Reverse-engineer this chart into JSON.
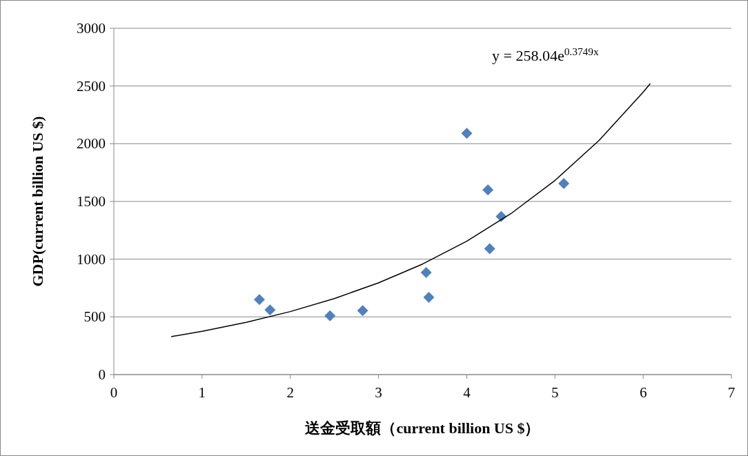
{
  "chart_data": {
    "type": "scatter",
    "xlabel": "送金受取額（current billion US $）",
    "ylabel": "GDP(current billion US $)",
    "annotations": [
      "y = 258.04e$^{0.3749x}$"
    ],
    "xlim": [
      0,
      7
    ],
    "xticks": [
      0,
      1,
      2,
      3,
      4,
      5,
      6,
      7
    ],
    "ylim": [
      0,
      3000
    ],
    "yticks": [
      0,
      500,
      1000,
      1500,
      2000,
      2500,
      3000
    ],
    "grid": "y",
    "marker": "diamond",
    "series": [
      {
        "type": "scatter",
        "color": "#4f81bd",
        "x": [
          1.65,
          1.77,
          2.45,
          2.82,
          3.54,
          3.57,
          4.0,
          4.24,
          4.26,
          4.39,
          5.1
        ],
        "values": [
          650,
          560,
          510,
          555,
          885,
          670,
          2090,
          1600,
          1090,
          1370,
          1655
        ]
      },
      {
        "type": "line",
        "color": "#000000",
        "marker": "none",
        "line_style": "solid",
        "x": [
          0.65,
          1,
          1.5,
          2,
          2.5,
          3,
          3.5,
          4,
          4.5,
          5,
          5.5,
          6,
          6.08
        ],
        "values": [
          329,
          375,
          453,
          546,
          659,
          795,
          958,
          1156,
          1394,
          1682,
          2029,
          2447,
          2521
        ]
      }
    ]
  }
}
